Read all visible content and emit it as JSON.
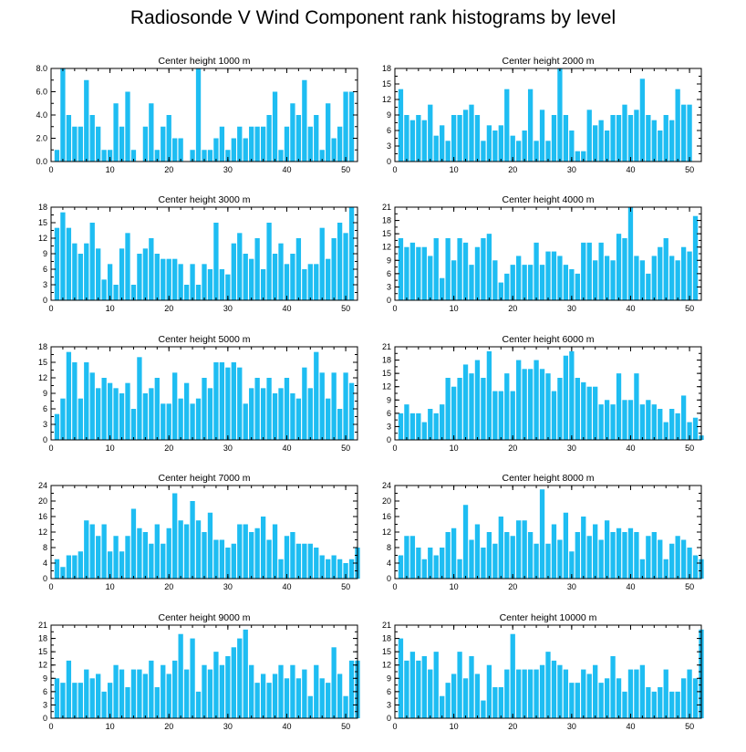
{
  "figure": {
    "title": "Radiosonde V Wind Component rank histograms by level",
    "bar_color": "#1EBDF2"
  },
  "chart_data": [
    {
      "type": "bar",
      "title": "Center height 1000 m",
      "xlim": [
        0,
        52
      ],
      "ylim": [
        0,
        8
      ],
      "yticks": [
        0,
        2,
        4,
        6,
        8
      ],
      "ytick_labels": [
        "0.0",
        "2.0",
        "4.0",
        "6.0",
        "8.0"
      ],
      "xticks": [
        0,
        10,
        20,
        30,
        40,
        50
      ],
      "values": [
        1,
        8,
        4,
        3,
        3,
        7,
        4,
        3,
        1,
        1,
        5,
        3,
        6,
        1,
        0,
        3,
        5,
        1,
        3,
        4,
        2,
        2,
        0,
        1,
        8,
        1,
        1,
        2,
        3,
        1,
        2,
        3,
        2,
        3,
        3,
        3,
        4,
        6,
        1,
        3,
        5,
        4,
        7,
        3,
        4,
        1,
        5,
        2,
        3,
        6,
        6
      ]
    },
    {
      "type": "bar",
      "title": "Center height 2000 m",
      "xlim": [
        0,
        52
      ],
      "ylim": [
        0,
        18
      ],
      "yticks": [
        0,
        3,
        6,
        9,
        12,
        15,
        18
      ],
      "ytick_labels": [
        "0",
        "3",
        "6",
        "9",
        "12",
        "15",
        "18"
      ],
      "xticks": [
        0,
        10,
        20,
        30,
        40,
        50
      ],
      "values": [
        14,
        9,
        8,
        9,
        8,
        11,
        5,
        7,
        4,
        9,
        9,
        10,
        11,
        9,
        4,
        7,
        6,
        7,
        14,
        5,
        4,
        6,
        14,
        4,
        10,
        4,
        9,
        18,
        9,
        6,
        2,
        2,
        10,
        7,
        8,
        6,
        9,
        9,
        11,
        9,
        10,
        16,
        9,
        8,
        6,
        9,
        8,
        14,
        11,
        11,
        0
      ]
    },
    {
      "type": "bar",
      "title": "Center height 3000 m",
      "xlim": [
        0,
        52
      ],
      "ylim": [
        0,
        18
      ],
      "yticks": [
        0,
        3,
        6,
        9,
        12,
        15,
        18
      ],
      "ytick_labels": [
        "0",
        "3",
        "6",
        "9",
        "12",
        "15",
        "18"
      ],
      "xticks": [
        0,
        10,
        20,
        30,
        40,
        50
      ],
      "values": [
        14,
        17,
        14,
        11,
        9,
        11,
        15,
        10,
        4,
        7,
        3,
        10,
        13,
        3,
        9,
        10,
        12,
        9,
        8,
        8,
        8,
        7,
        3,
        7,
        3,
        7,
        6,
        15,
        6,
        5,
        11,
        13,
        9,
        8,
        12,
        6,
        15,
        9,
        11,
        7,
        9,
        12,
        6,
        7,
        7,
        14,
        8,
        12,
        15,
        13,
        18
      ]
    },
    {
      "type": "bar",
      "title": "Center height 4000 m",
      "xlim": [
        0,
        52
      ],
      "ylim": [
        0,
        21
      ],
      "yticks": [
        0,
        3,
        6,
        9,
        12,
        15,
        18,
        21
      ],
      "ytick_labels": [
        "0",
        "3",
        "6",
        "9",
        "12",
        "15",
        "18",
        "21"
      ],
      "xticks": [
        0,
        10,
        20,
        30,
        40,
        50
      ],
      "values": [
        14,
        12,
        13,
        12,
        12,
        10,
        14,
        5,
        14,
        9,
        14,
        13,
        8,
        12,
        14,
        15,
        9,
        4,
        6,
        8,
        10,
        8,
        8,
        13,
        8,
        11,
        11,
        10,
        8,
        7,
        6,
        13,
        13,
        9,
        13,
        10,
        9,
        15,
        14,
        21,
        10,
        9,
        6,
        10,
        12,
        14,
        10,
        9,
        12,
        11,
        19
      ]
    },
    {
      "type": "bar",
      "title": "Center height 5000 m",
      "xlim": [
        0,
        52
      ],
      "ylim": [
        0,
        18
      ],
      "yticks": [
        0,
        3,
        6,
        9,
        12,
        15,
        18
      ],
      "ytick_labels": [
        "0",
        "3",
        "6",
        "9",
        "12",
        "15",
        "18"
      ],
      "xticks": [
        0,
        10,
        20,
        30,
        40,
        50
      ],
      "values": [
        5,
        8,
        17,
        15,
        8,
        15,
        13,
        10,
        12,
        11,
        10,
        9,
        11,
        6,
        16,
        9,
        10,
        12,
        7,
        7,
        13,
        8,
        11,
        7,
        8,
        12,
        10,
        15,
        15,
        14,
        15,
        14,
        7,
        10,
        12,
        10,
        12,
        9,
        10,
        12,
        9,
        8,
        14,
        10,
        17,
        13,
        8,
        13,
        6,
        13,
        11
      ]
    },
    {
      "type": "bar",
      "title": "Center height 6000 m",
      "xlim": [
        0,
        52
      ],
      "ylim": [
        0,
        21
      ],
      "yticks": [
        0,
        3,
        6,
        9,
        12,
        15,
        18,
        21
      ],
      "ytick_labels": [
        "0",
        "3",
        "6",
        "9",
        "12",
        "15",
        "18",
        "21"
      ],
      "xticks": [
        0,
        10,
        20,
        30,
        40,
        50
      ],
      "values": [
        6,
        8,
        6,
        6,
        4,
        7,
        6,
        8,
        14,
        12,
        14,
        17,
        15,
        18,
        14,
        20,
        11,
        11,
        15,
        11,
        18,
        16,
        16,
        18,
        16,
        15,
        11,
        14,
        19,
        20,
        14,
        13,
        12,
        12,
        8,
        9,
        8,
        15,
        9,
        9,
        15,
        8,
        9,
        8,
        7,
        4,
        7,
        6,
        10,
        4,
        5,
        1
      ]
    },
    {
      "type": "bar",
      "title": "Center height 7000 m",
      "xlim": [
        0,
        52
      ],
      "ylim": [
        0,
        24
      ],
      "yticks": [
        0,
        4,
        8,
        12,
        16,
        20,
        24
      ],
      "ytick_labels": [
        "0",
        "4",
        "8",
        "12",
        "16",
        "20",
        "24"
      ],
      "xticks": [
        0,
        10,
        20,
        30,
        40,
        50
      ],
      "values": [
        5,
        3,
        6,
        6,
        7,
        15,
        14,
        11,
        14,
        7,
        11,
        7,
        11,
        18,
        13,
        12,
        9,
        14,
        9,
        13,
        22,
        15,
        14,
        20,
        15,
        12,
        17,
        10,
        10,
        8,
        9,
        14,
        14,
        12,
        13,
        16,
        10,
        14,
        5,
        11,
        12,
        9,
        9,
        9,
        8,
        6,
        5,
        6,
        5,
        4,
        5,
        8
      ]
    },
    {
      "type": "bar",
      "title": "Center height 8000 m",
      "xlim": [
        0,
        52
      ],
      "ylim": [
        0,
        24
      ],
      "yticks": [
        0,
        4,
        8,
        12,
        16,
        20,
        24
      ],
      "ytick_labels": [
        "0",
        "4",
        "8",
        "12",
        "16",
        "20",
        "24"
      ],
      "xticks": [
        0,
        10,
        20,
        30,
        40,
        50
      ],
      "values": [
        6,
        11,
        11,
        8,
        5,
        8,
        6,
        8,
        12,
        13,
        5,
        19,
        10,
        14,
        8,
        12,
        9,
        16,
        12,
        11,
        15,
        15,
        12,
        9,
        23,
        9,
        14,
        10,
        17,
        7,
        12,
        16,
        11,
        14,
        10,
        15,
        12,
        13,
        12,
        13,
        12,
        5,
        11,
        12,
        10,
        5,
        9,
        11,
        10,
        8,
        6,
        5
      ]
    },
    {
      "type": "bar",
      "title": "Center height 9000 m",
      "xlim": [
        0,
        52
      ],
      "ylim": [
        0,
        21
      ],
      "yticks": [
        0,
        3,
        6,
        9,
        12,
        15,
        18,
        21
      ],
      "ytick_labels": [
        "0",
        "3",
        "6",
        "9",
        "12",
        "15",
        "18",
        "21"
      ],
      "xticks": [
        0,
        10,
        20,
        30,
        40,
        50
      ],
      "values": [
        9,
        8,
        13,
        8,
        8,
        11,
        9,
        10,
        6,
        8,
        12,
        11,
        7,
        11,
        11,
        10,
        13,
        7,
        12,
        10,
        13,
        19,
        11,
        18,
        6,
        12,
        11,
        15,
        12,
        14,
        16,
        18,
        20,
        12,
        8,
        10,
        8,
        10,
        12,
        9,
        12,
        9,
        11,
        5,
        12,
        9,
        8,
        16,
        10,
        5,
        13,
        13
      ]
    },
    {
      "type": "bar",
      "title": "Center height 10000 m",
      "xlim": [
        0,
        52
      ],
      "ylim": [
        0,
        21
      ],
      "yticks": [
        0,
        3,
        6,
        9,
        12,
        15,
        18,
        21
      ],
      "ytick_labels": [
        "0",
        "3",
        "6",
        "9",
        "12",
        "15",
        "18",
        "21"
      ],
      "xticks": [
        0,
        10,
        20,
        30,
        40,
        50
      ],
      "values": [
        18,
        13,
        15,
        13,
        14,
        11,
        15,
        5,
        8,
        10,
        15,
        9,
        14,
        10,
        4,
        12,
        7,
        7,
        11,
        19,
        11,
        11,
        11,
        11,
        12,
        15,
        13,
        12,
        11,
        8,
        8,
        11,
        10,
        12,
        8,
        9,
        14,
        9,
        6,
        11,
        11,
        12,
        7,
        6,
        7,
        11,
        6,
        6,
        9,
        11,
        9,
        20
      ]
    }
  ]
}
